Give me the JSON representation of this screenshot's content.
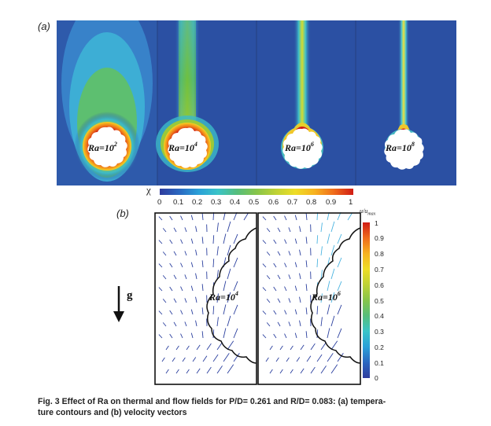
{
  "panel_a": {
    "label": "(a)",
    "cases": [
      {
        "ra_base": "Ra=10",
        "ra_exp": "2"
      },
      {
        "ra_base": "Ra=10",
        "ra_exp": "4"
      },
      {
        "ra_base": "Ra=10",
        "ra_exp": "6"
      },
      {
        "ra_base": "Ra=10",
        "ra_exp": "8"
      }
    ],
    "colorbar": {
      "symbol": "χ",
      "ticks": [
        "0",
        "0.1",
        "0.2",
        "0.3",
        "0.4",
        "0.5",
        "0.6",
        "0.7",
        "0.8",
        "0.9",
        "1"
      ]
    }
  },
  "panel_b": {
    "label": "(b)",
    "gravity_label": "g",
    "cases": [
      {
        "ra_base": "Ra=10",
        "ra_exp": "4"
      },
      {
        "ra_base": "Ra=10",
        "ra_exp": "6"
      }
    ],
    "colorbar": {
      "title": "u/u",
      "title_sub": "max",
      "ticks": [
        "1",
        "0.9",
        "0.8",
        "0.7",
        "0.6",
        "0.5",
        "0.4",
        "0.3",
        "0.2",
        "0.1",
        "0"
      ]
    }
  },
  "caption": {
    "line1": "Fig. 3   Effect of Ra on thermal and flow fields for P/D= 0.261 and R/D= 0.083: (a) tempera-",
    "line2": "ture contours and (b) velocity vectors"
  },
  "colors": {
    "field_blue": "#2b50a3",
    "hot_red": "#d01c14"
  }
}
